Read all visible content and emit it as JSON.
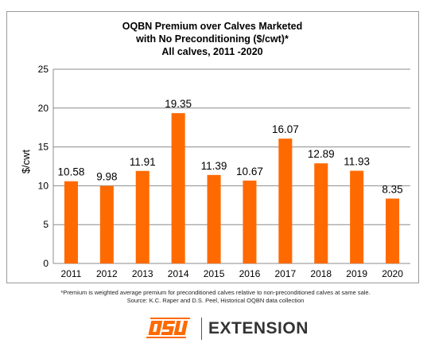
{
  "chart_data": {
    "type": "bar",
    "title_lines": [
      "OQBN Premium over Calves Marketed",
      "with No Preconditioning ($/cwt)*",
      "All calves, 2011 -2020"
    ],
    "ylabel": "$/cwt",
    "xlabel": "",
    "ylim": [
      0,
      25
    ],
    "yticks": [
      0,
      5,
      10,
      15,
      20,
      25
    ],
    "grid": true,
    "legend": "none",
    "bar_color": "#ff6a00",
    "grid_color": "#8c8c8c",
    "categories": [
      "2011",
      "2012",
      "2013",
      "2014",
      "2015",
      "2016",
      "2017",
      "2018",
      "2019",
      "2020"
    ],
    "values": [
      10.58,
      9.98,
      11.91,
      19.35,
      11.39,
      10.67,
      16.07,
      12.89,
      11.93,
      8.35
    ],
    "data_labels": [
      "10.58",
      "9.98",
      "11.91",
      "19.35",
      "11.39",
      "10.67",
      "16.07",
      "12.89",
      "11.93",
      "8.35"
    ]
  },
  "footnote": {
    "line1": "*Premium is weighted average premium for preconditioned calves relative to non-preconditioned calves at same sale.",
    "line2": "Source: K.C. Raper and D.S. Peel, Historical OQBN data collection"
  },
  "branding": {
    "logo_icon": "osu-brand-logo",
    "logo_color": "#ff6a00",
    "extension_text": "EXTENSION"
  }
}
